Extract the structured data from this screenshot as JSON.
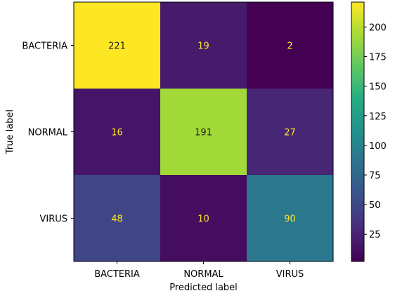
{
  "chart_data": {
    "type": "heatmap",
    "title": "",
    "xlabel": "Predicted label",
    "ylabel": "True label",
    "x_categories": [
      "BACTERIA",
      "NORMAL",
      "VIRUS"
    ],
    "y_categories": [
      "BACTERIA",
      "NORMAL",
      "VIRUS"
    ],
    "matrix": [
      [
        221,
        19,
        2
      ],
      [
        16,
        191,
        27
      ],
      [
        48,
        10,
        90
      ]
    ],
    "colormap": "viridis",
    "colorbar": {
      "range": [
        2,
        221
      ],
      "ticks": [
        25,
        50,
        75,
        100,
        125,
        150,
        175,
        200
      ]
    },
    "colors": {
      "text_on_dark": "#fde725",
      "text_on_light": "#222222"
    }
  }
}
